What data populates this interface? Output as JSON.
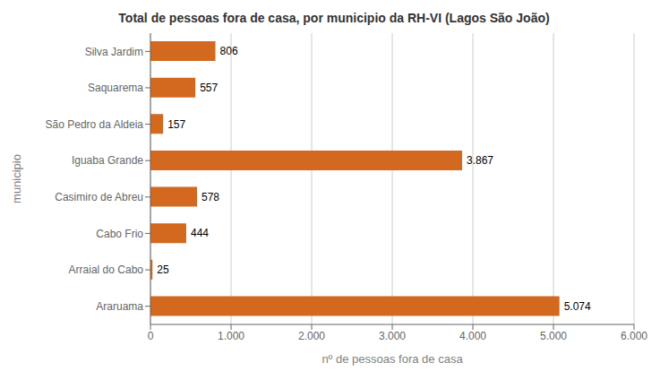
{
  "chart_data": {
    "type": "bar",
    "title": "Total de pessoas fora de casa, por municipio da RH-VI (Lagos  São João)",
    "orientation": "horizontal",
    "categories": [
      "Silva Jardim",
      "Saquarema",
      "São Pedro da Aldeia",
      "Iguaba Grande",
      "Casimiro de Abreu",
      "Cabo Frio",
      "Arraial do Cabo",
      "Araruama"
    ],
    "values": [
      806,
      557,
      157,
      3867,
      578,
      444,
      25,
      5074
    ],
    "value_labels": [
      "806",
      "557",
      "157",
      "3.867",
      "578",
      "444",
      "25",
      "5.074"
    ],
    "data_labels": true,
    "color": "#D2691E",
    "xlabel": "nº de pessoas fora de casa",
    "ylabel": "municipio",
    "xlim": [
      0,
      6000
    ],
    "xticks": [
      0,
      {
        "value": 1000,
        "label": "1.000"
      },
      {
        "value": 2000,
        "label": "2.000"
      },
      {
        "value": 3000,
        "label": "3.000"
      },
      {
        "value": 4000,
        "label": "4.000"
      },
      {
        "value": 5000,
        "label": "5.000"
      },
      {
        "value": 6000,
        "label": "6.000"
      }
    ],
    "grid": true
  }
}
